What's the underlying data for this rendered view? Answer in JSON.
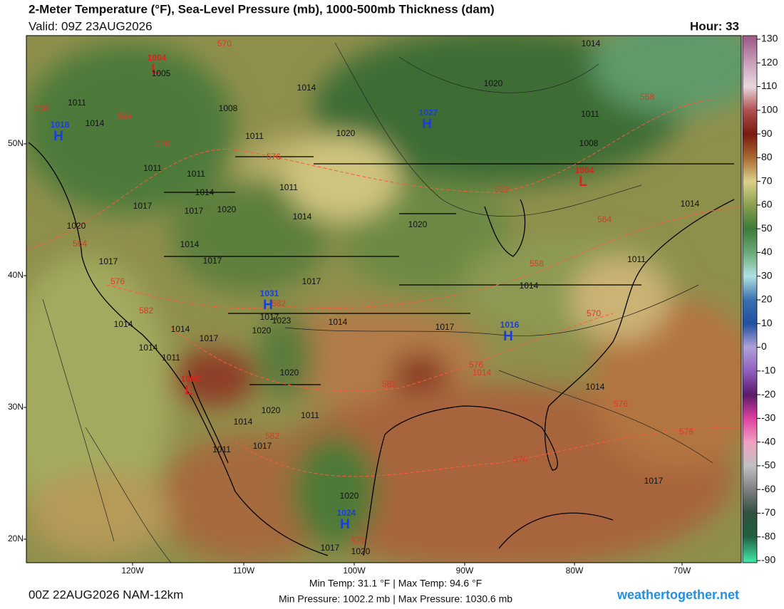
{
  "header": {
    "title": "2-Meter Temperature (°F), Sea-Level Pressure (mb), 1000-500mb Thickness (dam)",
    "valid": "Valid: 09Z 23AUG2026",
    "hour": "Hour: 33"
  },
  "colorbar": {
    "ticks": [
      130,
      120,
      110,
      100,
      90,
      80,
      70,
      60,
      50,
      40,
      30,
      20,
      10,
      0,
      -10,
      -20,
      -30,
      -40,
      -50,
      -60,
      -70,
      -80,
      -90
    ]
  },
  "latitude_labels": [
    "50N",
    "40N",
    "30N",
    "20N"
  ],
  "longitude_labels": [
    "120W",
    "110W",
    "100W",
    "90W",
    "80W",
    "70W"
  ],
  "pressure_centers": [
    {
      "letter": "L",
      "pressure": "1004"
    },
    {
      "letter": "H",
      "pressure": "1018"
    },
    {
      "letter": "H",
      "pressure": "1027"
    },
    {
      "letter": "L",
      "pressure": "1004"
    },
    {
      "letter": "H",
      "pressure": "1031"
    },
    {
      "letter": "H",
      "pressure": "1016"
    },
    {
      "letter": "L",
      "pressure": "1006"
    },
    {
      "letter": "H",
      "pressure": "1024"
    }
  ],
  "isobar_labels": [
    "1005",
    "1011",
    "1014",
    "1008",
    "1011",
    "1014",
    "1020",
    "1014",
    "1020",
    "1011",
    "1008",
    "1011",
    "1011",
    "1014",
    "1011",
    "1017",
    "1017",
    "1020",
    "1014",
    "1020",
    "1020",
    "1014",
    "1017",
    "1017",
    "1017",
    "1014",
    "1014",
    "1011",
    "1014",
    "1014",
    "1017",
    "1023",
    "1017",
    "1020",
    "1014",
    "1017",
    "1014",
    "1011",
    "1020",
    "1014",
    "1020",
    "1011",
    "1014",
    "1017",
    "1011",
    "1017",
    "1020",
    "1017",
    "1020"
  ],
  "thickness_labels": [
    "570",
    "558",
    "564",
    "576",
    "576",
    "552",
    "558",
    "564",
    "564",
    "576",
    "582",
    "582",
    "558",
    "570",
    "582",
    "576",
    "1014",
    "576",
    "576",
    "576",
    "582",
    "576"
  ],
  "footer": {
    "temp_range": "Min Temp:  31.1 °F | Max Temp:  94.6 °F",
    "pressure_range": "Min Pressure: 1002.2 mb | Max Pressure: 1030.6 mb",
    "model_run": "00Z 22AUG2026 NAM-12km",
    "site": "weathertogether.net"
  }
}
